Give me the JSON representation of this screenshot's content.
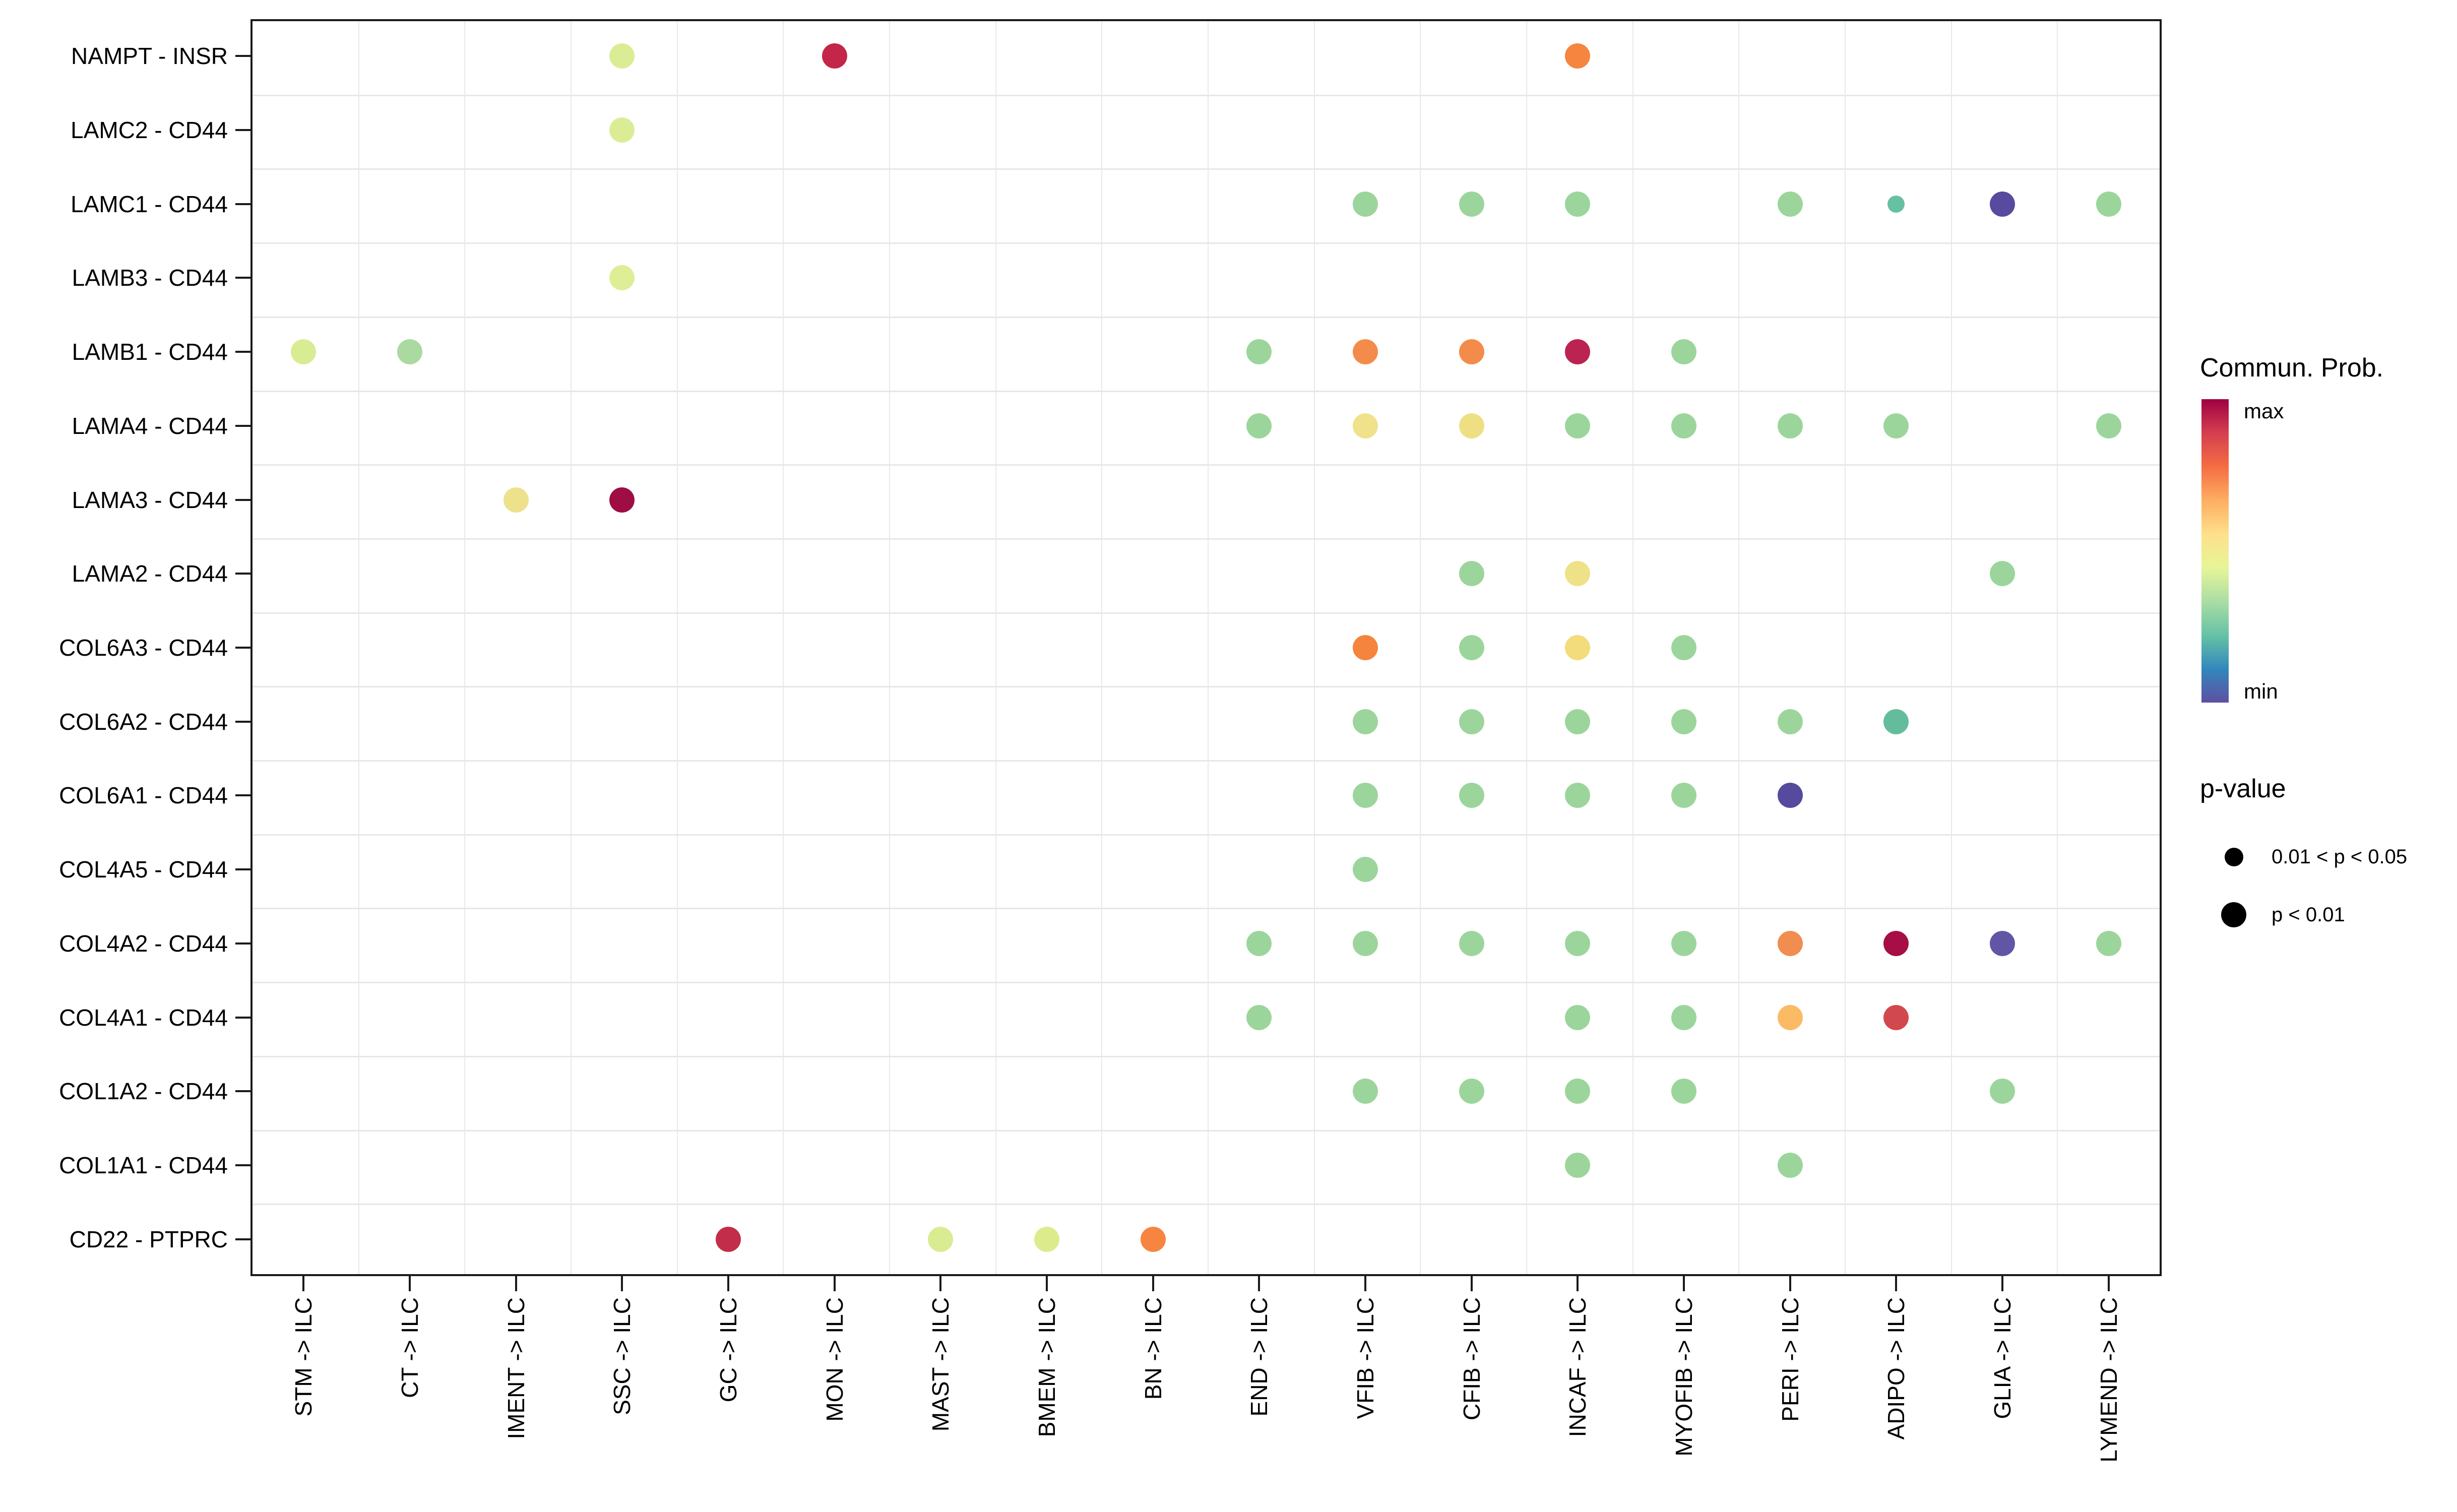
{
  "chart_data": {
    "type": "scatter",
    "title": "",
    "xlabel": "",
    "ylabel": "",
    "rows": [
      "NAMPT - INSR",
      "LAMC2 - CD44",
      "LAMC1 - CD44",
      "LAMB3 - CD44",
      "LAMB1 - CD44",
      "LAMA4 - CD44",
      "LAMA3 - CD44",
      "LAMA2 - CD44",
      "COL6A3 - CD44",
      "COL6A2 - CD44",
      "COL6A1 - CD44",
      "COL4A5 - CD44",
      "COL4A2 - CD44",
      "COL4A1 - CD44",
      "COL1A2 - CD44",
      "COL1A1 - CD44",
      "CD22 - PTPRC"
    ],
    "columns": [
      "STM -> ILC",
      "CT -> ILC",
      "IMENT -> ILC",
      "SSC -> ILC",
      "GC -> ILC",
      "MON -> ILC",
      "MAST -> ILC",
      "BMEM -> ILC",
      "BN -> ILC",
      "END -> ILC",
      "VFIB -> ILC",
      "CFIB -> ILC",
      "INCAF -> ILC",
      "MYOFIB -> ILC",
      "PERI -> ILC",
      "ADIPO -> ILC",
      "GLIA -> ILC",
      "LYMEND -> ILC"
    ],
    "points": [
      {
        "row": "NAMPT - INSR",
        "col": "SSC -> ILC",
        "color": "#DAED94",
        "size": "large"
      },
      {
        "row": "NAMPT - INSR",
        "col": "MON -> ILC",
        "color": "#C32649",
        "size": "large"
      },
      {
        "row": "NAMPT - INSR",
        "col": "INCAF -> ILC",
        "color": "#F5853F",
        "size": "large"
      },
      {
        "row": "LAMC2 - CD44",
        "col": "SSC -> ILC",
        "color": "#DAED94",
        "size": "large"
      },
      {
        "row": "LAMC1 - CD44",
        "col": "VFIB -> ILC",
        "color": "#9CD59B",
        "size": "large"
      },
      {
        "row": "LAMC1 - CD44",
        "col": "CFIB -> ILC",
        "color": "#9CD59B",
        "size": "large"
      },
      {
        "row": "LAMC1 - CD44",
        "col": "INCAF -> ILC",
        "color": "#9CD59B",
        "size": "large"
      },
      {
        "row": "LAMC1 - CD44",
        "col": "PERI -> ILC",
        "color": "#9CD59B",
        "size": "large"
      },
      {
        "row": "LAMC1 - CD44",
        "col": "ADIPO -> ILC",
        "color": "#66C0A2",
        "size": "small"
      },
      {
        "row": "LAMC1 - CD44",
        "col": "GLIA -> ILC",
        "color": "#584A9F",
        "size": "large"
      },
      {
        "row": "LAMC1 - CD44",
        "col": "LYMEND -> ILC",
        "color": "#9CD59B",
        "size": "large"
      },
      {
        "row": "LAMB3 - CD44",
        "col": "SSC -> ILC",
        "color": "#DDEE96",
        "size": "large"
      },
      {
        "row": "LAMB1 - CD44",
        "col": "STM -> ILC",
        "color": "#D9EC94",
        "size": "large"
      },
      {
        "row": "LAMB1 - CD44",
        "col": "CT -> ILC",
        "color": "#AADAA0",
        "size": "large"
      },
      {
        "row": "LAMB1 - CD44",
        "col": "END -> ILC",
        "color": "#9CD59B",
        "size": "large"
      },
      {
        "row": "LAMB1 - CD44",
        "col": "VFIB -> ILC",
        "color": "#F38C4A",
        "size": "large"
      },
      {
        "row": "LAMB1 - CD44",
        "col": "CFIB -> ILC",
        "color": "#F38C4A",
        "size": "large"
      },
      {
        "row": "LAMB1 - CD44",
        "col": "INCAF -> ILC",
        "color": "#BB2350",
        "size": "large"
      },
      {
        "row": "LAMB1 - CD44",
        "col": "MYOFIB -> ILC",
        "color": "#9CD59B",
        "size": "large"
      },
      {
        "row": "LAMA4 - CD44",
        "col": "END -> ILC",
        "color": "#9CD59B",
        "size": "large"
      },
      {
        "row": "LAMA4 - CD44",
        "col": "VFIB -> ILC",
        "color": "#EFE28A",
        "size": "large"
      },
      {
        "row": "LAMA4 - CD44",
        "col": "CFIB -> ILC",
        "color": "#EFDF83",
        "size": "large"
      },
      {
        "row": "LAMA4 - CD44",
        "col": "INCAF -> ILC",
        "color": "#9CD59B",
        "size": "large"
      },
      {
        "row": "LAMA4 - CD44",
        "col": "MYOFIB -> ILC",
        "color": "#9CD59B",
        "size": "large"
      },
      {
        "row": "LAMA4 - CD44",
        "col": "PERI -> ILC",
        "color": "#9CD59B",
        "size": "large"
      },
      {
        "row": "LAMA4 - CD44",
        "col": "ADIPO -> ILC",
        "color": "#9CD59B",
        "size": "large"
      },
      {
        "row": "LAMA4 - CD44",
        "col": "LYMEND -> ILC",
        "color": "#9CD59B",
        "size": "large"
      },
      {
        "row": "LAMA3 - CD44",
        "col": "IMENT -> ILC",
        "color": "#EDE28B",
        "size": "large"
      },
      {
        "row": "LAMA3 - CD44",
        "col": "SSC -> ILC",
        "color": "#9E0D44",
        "size": "large"
      },
      {
        "row": "LAMA2 - CD44",
        "col": "CFIB -> ILC",
        "color": "#9CD59B",
        "size": "large"
      },
      {
        "row": "LAMA2 - CD44",
        "col": "INCAF -> ILC",
        "color": "#EFE187",
        "size": "large"
      },
      {
        "row": "LAMA2 - CD44",
        "col": "GLIA -> ILC",
        "color": "#9CD59B",
        "size": "large"
      },
      {
        "row": "COL6A3 - CD44",
        "col": "VFIB -> ILC",
        "color": "#F5843E",
        "size": "large"
      },
      {
        "row": "COL6A3 - CD44",
        "col": "CFIB -> ILC",
        "color": "#9CD59B",
        "size": "large"
      },
      {
        "row": "COL6A3 - CD44",
        "col": "INCAF -> ILC",
        "color": "#F2DC7B",
        "size": "large"
      },
      {
        "row": "COL6A3 - CD44",
        "col": "MYOFIB -> ILC",
        "color": "#9CD59B",
        "size": "large"
      },
      {
        "row": "COL6A2 - CD44",
        "col": "VFIB -> ILC",
        "color": "#9CD59B",
        "size": "large"
      },
      {
        "row": "COL6A2 - CD44",
        "col": "CFIB -> ILC",
        "color": "#9CD59B",
        "size": "large"
      },
      {
        "row": "COL6A2 - CD44",
        "col": "INCAF -> ILC",
        "color": "#9CD59B",
        "size": "large"
      },
      {
        "row": "COL6A2 - CD44",
        "col": "MYOFIB -> ILC",
        "color": "#9CD59B",
        "size": "large"
      },
      {
        "row": "COL6A2 - CD44",
        "col": "PERI -> ILC",
        "color": "#9CD59B",
        "size": "large"
      },
      {
        "row": "COL6A2 - CD44",
        "col": "ADIPO -> ILC",
        "color": "#63BD9C",
        "size": "large"
      },
      {
        "row": "COL6A1 - CD44",
        "col": "VFIB -> ILC",
        "color": "#9CD59B",
        "size": "large"
      },
      {
        "row": "COL6A1 - CD44",
        "col": "CFIB -> ILC",
        "color": "#9CD59B",
        "size": "large"
      },
      {
        "row": "COL6A1 - CD44",
        "col": "INCAF -> ILC",
        "color": "#9CD59B",
        "size": "large"
      },
      {
        "row": "COL6A1 - CD44",
        "col": "MYOFIB -> ILC",
        "color": "#9CD59B",
        "size": "large"
      },
      {
        "row": "COL6A1 - CD44",
        "col": "PERI -> ILC",
        "color": "#564A9F",
        "size": "large"
      },
      {
        "row": "COL4A5 - CD44",
        "col": "VFIB -> ILC",
        "color": "#9CD59B",
        "size": "large"
      },
      {
        "row": "COL4A2 - CD44",
        "col": "END -> ILC",
        "color": "#9CD59B",
        "size": "large"
      },
      {
        "row": "COL4A2 - CD44",
        "col": "VFIB -> ILC",
        "color": "#9CD59B",
        "size": "large"
      },
      {
        "row": "COL4A2 - CD44",
        "col": "CFIB -> ILC",
        "color": "#9CD59B",
        "size": "large"
      },
      {
        "row": "COL4A2 - CD44",
        "col": "INCAF -> ILC",
        "color": "#9CD59B",
        "size": "large"
      },
      {
        "row": "COL4A2 - CD44",
        "col": "MYOFIB -> ILC",
        "color": "#9CD59B",
        "size": "large"
      },
      {
        "row": "COL4A2 - CD44",
        "col": "PERI -> ILC",
        "color": "#F18D50",
        "size": "large"
      },
      {
        "row": "COL4A2 - CD44",
        "col": "ADIPO -> ILC",
        "color": "#A60E45",
        "size": "large"
      },
      {
        "row": "COL4A2 - CD44",
        "col": "GLIA -> ILC",
        "color": "#6156A6",
        "size": "large"
      },
      {
        "row": "COL4A2 - CD44",
        "col": "LYMEND -> ILC",
        "color": "#9CD59B",
        "size": "large"
      },
      {
        "row": "COL4A1 - CD44",
        "col": "END -> ILC",
        "color": "#9CD59B",
        "size": "large"
      },
      {
        "row": "COL4A1 - CD44",
        "col": "INCAF -> ILC",
        "color": "#9CD59B",
        "size": "large"
      },
      {
        "row": "COL4A1 - CD44",
        "col": "MYOFIB -> ILC",
        "color": "#9CD59B",
        "size": "large"
      },
      {
        "row": "COL4A1 - CD44",
        "col": "PERI -> ILC",
        "color": "#FABB64",
        "size": "large"
      },
      {
        "row": "COL4A1 - CD44",
        "col": "ADIPO -> ILC",
        "color": "#D2484F",
        "size": "large"
      },
      {
        "row": "COL1A2 - CD44",
        "col": "VFIB -> ILC",
        "color": "#9CD59B",
        "size": "large"
      },
      {
        "row": "COL1A2 - CD44",
        "col": "CFIB -> ILC",
        "color": "#9CD59B",
        "size": "large"
      },
      {
        "row": "COL1A2 - CD44",
        "col": "INCAF -> ILC",
        "color": "#9CD59B",
        "size": "large"
      },
      {
        "row": "COL1A2 - CD44",
        "col": "MYOFIB -> ILC",
        "color": "#9CD59B",
        "size": "large"
      },
      {
        "row": "COL1A2 - CD44",
        "col": "GLIA -> ILC",
        "color": "#9CD59B",
        "size": "large"
      },
      {
        "row": "COL1A1 - CD44",
        "col": "INCAF -> ILC",
        "color": "#9CD59B",
        "size": "large"
      },
      {
        "row": "COL1A1 - CD44",
        "col": "PERI -> ILC",
        "color": "#9CD59B",
        "size": "large"
      },
      {
        "row": "CD22 - PTPRC",
        "col": "GC -> ILC",
        "color": "#C22E49",
        "size": "large"
      },
      {
        "row": "CD22 - PTPRC",
        "col": "MAST -> ILC",
        "color": "#D9EC91",
        "size": "large"
      },
      {
        "row": "CD22 - PTPRC",
        "col": "BMEM -> ILC",
        "color": "#DCEC8C",
        "size": "large"
      },
      {
        "row": "CD22 - PTPRC",
        "col": "BN -> ILC",
        "color": "#F58540",
        "size": "large"
      }
    ],
    "legend": {
      "color": {
        "title": "Commun. Prob.",
        "max_label": "max",
        "min_label": "min",
        "gradient_top_to_bottom": [
          "#9E0142",
          "#D53E4F",
          "#F46D43",
          "#FDAE61",
          "#FEE08B",
          "#E6F598",
          "#ABDDA4",
          "#66C2A5",
          "#3288BD",
          "#5E4FA2"
        ]
      },
      "size": {
        "title": "p-value",
        "dot_color": "#000000",
        "items": [
          {
            "label": "0.01 < p < 0.05",
            "size": "small"
          },
          {
            "label": "p < 0.01",
            "size": "large"
          }
        ]
      }
    },
    "layout": {
      "grid": true,
      "legend_position": "right",
      "x_tick_label_rotation_deg": 90,
      "panel_border_color": "#1a1a1a",
      "gridline_color": "#e9e9e9"
    }
  }
}
